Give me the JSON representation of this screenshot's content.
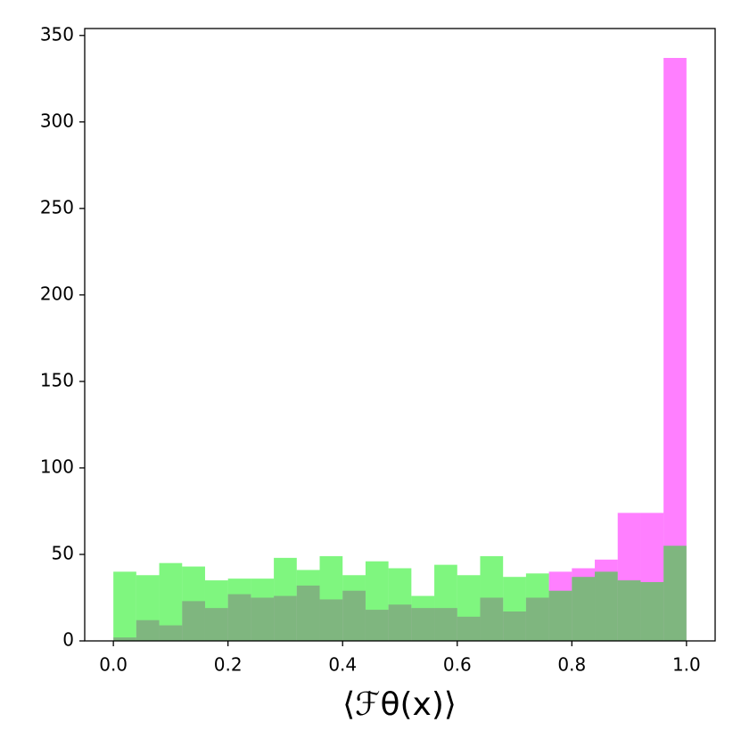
{
  "chart_data": {
    "type": "histogram",
    "x_label": "⟨ℱθ(x)⟩",
    "bins": [
      0,
      0.04,
      0.08,
      0.12,
      0.16,
      0.2,
      0.24,
      0.28,
      0.32,
      0.36,
      0.4,
      0.44,
      0.48,
      0.52,
      0.56,
      0.6,
      0.64,
      0.68,
      0.72,
      0.76,
      0.8,
      0.84,
      0.88,
      0.92,
      0.96,
      1
    ],
    "series": [
      {
        "color": "#ff00ff",
        "values": [
          2,
          12,
          9,
          23,
          19,
          27,
          25,
          26,
          32,
          24,
          29,
          18,
          21,
          19,
          19,
          14,
          25,
          17,
          25,
          40,
          42,
          47,
          74,
          74,
          337
        ]
      },
      {
        "color": "#00ee00",
        "values": [
          40,
          38,
          45,
          43,
          35,
          36,
          36,
          48,
          41,
          49,
          38,
          46,
          42,
          26,
          44,
          38,
          49,
          37,
          39,
          29,
          37,
          40,
          35,
          34,
          55
        ]
      }
    ],
    "opacity": 0.5,
    "xlim": [
      -0.05,
      1.05
    ],
    "ylim": [
      0,
      354
    ],
    "xticks": [
      {
        "value": 0,
        "label": "0.0"
      },
      0.2,
      0.4,
      0.6,
      0.8,
      {
        "value": 1,
        "label": "1.0"
      }
    ],
    "yticks": [
      0,
      50,
      100,
      150,
      200,
      250,
      300,
      350
    ]
  }
}
